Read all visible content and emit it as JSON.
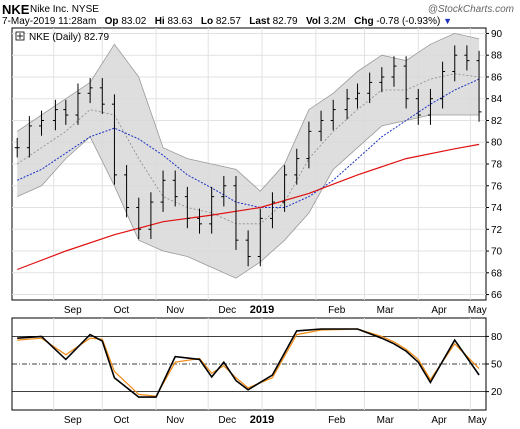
{
  "header": {
    "ticker": "NKE",
    "company": "Nike Inc.",
    "exchange": "NYSE",
    "copyright": "@StockCharts.com",
    "datetime": "7-May-2019 11:28am",
    "open_label": "Op",
    "open_value": "83.02",
    "high_label": "Hi",
    "high_value": "83.63",
    "low_label": "Lo",
    "low_value": "82.57",
    "last_label": "Last",
    "last_value": "82.79",
    "vol_label": "Vol",
    "vol_value": "3.2M",
    "chg_label": "Chg",
    "chg_value": "-0.78 (-0.93%)",
    "chg_arrow": "▼"
  },
  "legend": {
    "text": "NKE (Daily) 82.79"
  },
  "colors": {
    "price": "#000000",
    "bands_fill": "#d8d8d8",
    "bands_edge": "#9a9a9a",
    "sma_mid": "#8a8a8a",
    "ma_blue": "#1a2fc4",
    "ma_red": "#e01010",
    "osc_black": "#000000",
    "osc_orange": "#f08a14"
  },
  "chart_data": [
    {
      "type": "line",
      "title": "NKE (Daily) 82.79",
      "x_ticks": [
        "Sep",
        "Oct",
        "Nov",
        "Dec",
        "2019",
        "Feb",
        "Mar",
        "Apr",
        "May"
      ],
      "y_ticks": [
        66,
        68,
        70,
        72,
        74,
        76,
        78,
        80,
        82,
        84,
        86,
        88,
        90
      ],
      "ylim": [
        65.5,
        90.5
      ],
      "y_axis_side": "right",
      "grid": true,
      "series": [
        {
          "name": "NKE",
          "style": "ohlc",
          "x": [
            "2018-08-13",
            "2018-08-20",
            "2018-08-27",
            "2018-09-04",
            "2018-09-10",
            "2018-09-17",
            "2018-09-24",
            "2018-10-01",
            "2018-10-08",
            "2018-10-15",
            "2018-10-22",
            "2018-10-29",
            "2018-11-05",
            "2018-11-12",
            "2018-11-19",
            "2018-11-26",
            "2018-12-03",
            "2018-12-10",
            "2018-12-17",
            "2018-12-24",
            "2018-12-31",
            "2019-01-07",
            "2019-01-14",
            "2019-01-21",
            "2019-01-28",
            "2019-02-04",
            "2019-02-11",
            "2019-02-19",
            "2019-02-25",
            "2019-03-04",
            "2019-03-11",
            "2019-03-18",
            "2019-03-25",
            "2019-04-01",
            "2019-04-08",
            "2019-04-15",
            "2019-04-22",
            "2019-04-29",
            "2019-05-06"
          ],
          "values": [
            79.5,
            81.5,
            82.0,
            83.0,
            82.5,
            84.5,
            85.0,
            83.5,
            77.0,
            74.0,
            72.0,
            74.5,
            76.5,
            75.0,
            73.0,
            72.5,
            75.0,
            76.0,
            71.0,
            69.5,
            73.0,
            74.5,
            77.0,
            78.5,
            81.0,
            82.0,
            83.0,
            84.0,
            84.5,
            85.5,
            86.0,
            87.0,
            84.0,
            82.5,
            84.0,
            86.5,
            88.0,
            87.5,
            82.79
          ]
        },
        {
          "name": "Upper Bollinger Band",
          "x": [
            "2018-08-13",
            "2018-08-27",
            "2018-09-10",
            "2018-09-24",
            "2018-10-08",
            "2018-10-22",
            "2018-11-05",
            "2018-11-19",
            "2018-12-03",
            "2018-12-17",
            "2018-12-31",
            "2019-01-14",
            "2019-01-28",
            "2019-02-11",
            "2019-02-25",
            "2019-03-11",
            "2019-03-25",
            "2019-04-08",
            "2019-04-22",
            "2019-05-06"
          ],
          "values": [
            81.0,
            82.5,
            84.0,
            85.5,
            89.0,
            86.0,
            79.5,
            78.5,
            78.0,
            77.5,
            75.5,
            78.0,
            83.0,
            84.5,
            86.5,
            88.0,
            87.5,
            89.0,
            90.0,
            89.5
          ]
        },
        {
          "name": "Lower Bollinger Band",
          "x": [
            "2018-08-13",
            "2018-08-27",
            "2018-09-10",
            "2018-09-24",
            "2018-10-08",
            "2018-10-22",
            "2018-11-05",
            "2018-11-19",
            "2018-12-03",
            "2018-12-17",
            "2018-12-31",
            "2019-01-14",
            "2019-01-28",
            "2019-02-11",
            "2019-02-25",
            "2019-03-11",
            "2019-03-25",
            "2019-04-08",
            "2019-04-22",
            "2019-05-06"
          ],
          "values": [
            75.0,
            76.0,
            78.5,
            80.5,
            76.0,
            71.0,
            70.0,
            69.5,
            68.5,
            67.5,
            69.0,
            71.0,
            73.5,
            77.5,
            79.5,
            81.5,
            82.0,
            82.5,
            82.5,
            82.5
          ]
        },
        {
          "name": "Middle Band (20-day SMA)",
          "x": [
            "2018-08-13",
            "2018-08-27",
            "2018-09-10",
            "2018-09-24",
            "2018-10-08",
            "2018-10-22",
            "2018-11-05",
            "2018-11-19",
            "2018-12-03",
            "2018-12-17",
            "2018-12-31",
            "2019-01-14",
            "2019-01-28",
            "2019-02-11",
            "2019-02-25",
            "2019-03-11",
            "2019-03-25",
            "2019-04-08",
            "2019-04-22",
            "2019-05-06"
          ],
          "values": [
            78.0,
            79.5,
            81.0,
            83.0,
            82.5,
            78.5,
            75.0,
            74.0,
            73.5,
            72.5,
            72.5,
            74.5,
            78.5,
            81.0,
            83.0,
            84.8,
            84.8,
            85.8,
            86.3,
            86.0
          ]
        },
        {
          "name": "50-day Moving Average",
          "x": [
            "2018-08-13",
            "2018-08-27",
            "2018-09-10",
            "2018-09-24",
            "2018-10-08",
            "2018-10-22",
            "2018-11-05",
            "2018-11-19",
            "2018-12-03",
            "2018-12-17",
            "2018-12-31",
            "2019-01-14",
            "2019-01-28",
            "2019-02-11",
            "2019-02-25",
            "2019-03-11",
            "2019-03-25",
            "2019-04-08",
            "2019-04-22",
            "2019-05-06"
          ],
          "values": [
            76.5,
            77.5,
            79.0,
            80.5,
            81.3,
            80.3,
            78.8,
            77.0,
            75.8,
            74.5,
            74.0,
            74.0,
            75.0,
            76.5,
            78.5,
            80.5,
            82.0,
            83.5,
            84.8,
            85.8
          ]
        },
        {
          "name": "200-day Moving Average",
          "x": [
            "2018-08-13",
            "2018-09-10",
            "2018-10-08",
            "2018-11-05",
            "2018-12-03",
            "2018-12-31",
            "2019-01-28",
            "2019-02-25",
            "2019-03-25",
            "2019-04-22",
            "2019-05-06"
          ],
          "values": [
            68.3,
            70.0,
            71.5,
            72.7,
            73.3,
            74.0,
            75.3,
            77.0,
            78.5,
            79.4,
            79.8
          ]
        }
      ]
    },
    {
      "type": "line",
      "title": "",
      "x_ticks": [
        "Sep",
        "Oct",
        "Nov",
        "Dec",
        "2019",
        "Feb",
        "Mar",
        "Apr",
        "May"
      ],
      "y_ticks": [
        20,
        50,
        80
      ],
      "ylim": [
        0,
        100
      ],
      "y_axis_side": "right",
      "series": [
        {
          "name": "%K",
          "x": [
            "2018-08-13",
            "2018-08-27",
            "2018-09-10",
            "2018-09-24",
            "2018-10-01",
            "2018-10-08",
            "2018-10-22",
            "2018-11-01",
            "2018-11-12",
            "2018-11-26",
            "2018-12-03",
            "2018-12-10",
            "2018-12-17",
            "2018-12-24",
            "2019-01-07",
            "2019-01-21",
            "2019-02-04",
            "2019-02-25",
            "2019-03-11",
            "2019-03-18",
            "2019-03-25",
            "2019-04-01",
            "2019-04-08",
            "2019-04-22",
            "2019-05-06"
          ],
          "values": [
            78,
            80,
            55,
            82,
            75,
            35,
            14,
            14,
            58,
            55,
            36,
            52,
            32,
            22,
            38,
            86,
            88,
            88,
            78,
            72,
            64,
            52,
            30,
            76,
            38
          ]
        },
        {
          "name": "%D",
          "x": [
            "2018-08-13",
            "2018-08-27",
            "2018-09-10",
            "2018-09-24",
            "2018-10-01",
            "2018-10-08",
            "2018-10-22",
            "2018-11-01",
            "2018-11-12",
            "2018-11-26",
            "2018-12-03",
            "2018-12-10",
            "2018-12-17",
            "2018-12-24",
            "2019-01-07",
            "2019-01-21",
            "2019-02-04",
            "2019-02-25",
            "2019-03-11",
            "2019-03-18",
            "2019-03-25",
            "2019-04-01",
            "2019-04-08",
            "2019-04-22",
            "2019-05-06"
          ],
          "values": [
            76,
            78,
            60,
            78,
            77,
            42,
            17,
            15,
            52,
            56,
            40,
            48,
            35,
            24,
            35,
            82,
            87,
            88,
            80,
            74,
            66,
            55,
            33,
            72,
            45
          ]
        }
      ]
    }
  ]
}
